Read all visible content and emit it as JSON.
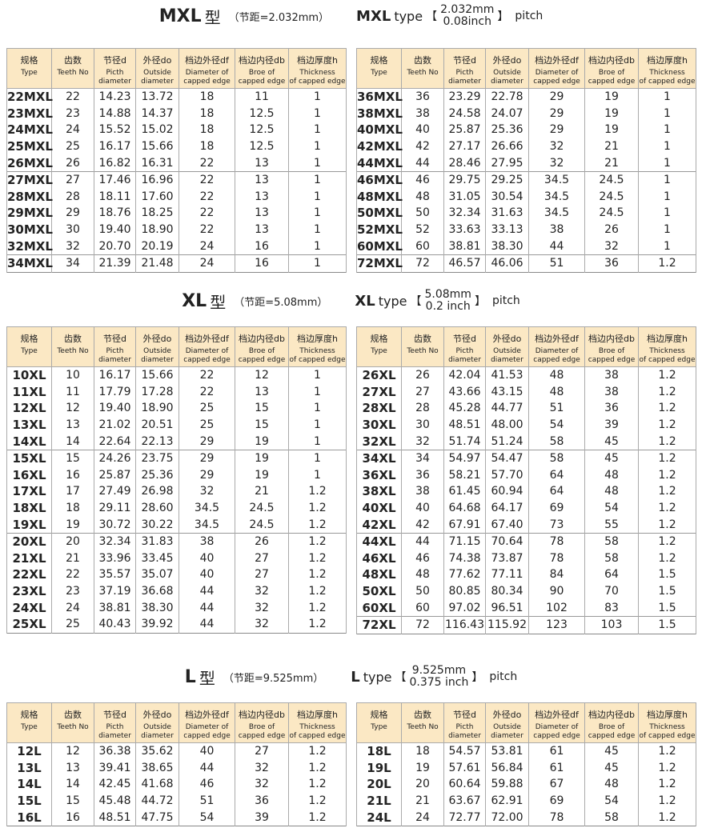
{
  "columns": [
    {
      "cn": "规格",
      "en": [
        "Type"
      ]
    },
    {
      "cn": "齿数",
      "en": [
        "Teeth No"
      ]
    },
    {
      "cn": "节径d",
      "en": [
        "Picth",
        "diameter"
      ]
    },
    {
      "cn": "外径do",
      "en": [
        "Outside",
        "diameter"
      ]
    },
    {
      "cn": "档边外径df",
      "en": [
        "Diameter of",
        "capped edge"
      ]
    },
    {
      "cn": "档边内径db",
      "en": [
        "Broe of",
        "capped edge"
      ]
    },
    {
      "cn": "档边厚度h",
      "en": [
        "Thickness",
        "of capped edge"
      ]
    }
  ],
  "sections": [
    {
      "heading": {
        "code": "MXL",
        "cn_type": "型",
        "cn_pitch": "（节距=2.032mm）",
        "en_type": "type",
        "bracket_open": "【",
        "pitch_mm": "2.032mm",
        "pitch_inch": "0.08inch",
        "bracket_close": "】",
        "pitch_word": "pitch"
      },
      "tables": [
        {
          "groups": [
            [
              [
                "22MXL",
                "22",
                "14.23",
                "13.72",
                "18",
                "11",
                "1"
              ],
              [
                "23MXL",
                "23",
                "14.88",
                "14.37",
                "18",
                "12.5",
                "1"
              ],
              [
                "24MXL",
                "24",
                "15.52",
                "15.02",
                "18",
                "12.5",
                "1"
              ],
              [
                "25MXL",
                "25",
                "16.17",
                "15.66",
                "18",
                "12.5",
                "1"
              ],
              [
                "26MXL",
                "26",
                "16.82",
                "16.31",
                "22",
                "13",
                "1"
              ]
            ],
            [
              [
                "27MXL",
                "27",
                "17.46",
                "16.96",
                "22",
                "13",
                "1"
              ],
              [
                "28MXL",
                "28",
                "18.11",
                "17.60",
                "22",
                "13",
                "1"
              ],
              [
                "29MXL",
                "29",
                "18.76",
                "18.25",
                "22",
                "13",
                "1"
              ],
              [
                "30MXL",
                "30",
                "19.40",
                "18.90",
                "22",
                "13",
                "1"
              ],
              [
                "32MXL",
                "32",
                "20.70",
                "20.19",
                "24",
                "16",
                "1"
              ]
            ],
            [
              [
                "34MXL",
                "34",
                "21.39",
                "21.48",
                "24",
                "16",
                "1"
              ]
            ]
          ]
        },
        {
          "groups": [
            [
              [
                "36MXL",
                "36",
                "23.29",
                "22.78",
                "29",
                "19",
                "1"
              ],
              [
                "38MXL",
                "38",
                "24.58",
                "24.07",
                "29",
                "19",
                "1"
              ],
              [
                "40MXL",
                "40",
                "25.87",
                "25.36",
                "29",
                "19",
                "1"
              ],
              [
                "42MXL",
                "42",
                "27.17",
                "26.66",
                "32",
                "21",
                "1"
              ],
              [
                "44MXL",
                "44",
                "28.46",
                "27.95",
                "32",
                "21",
                "1"
              ]
            ],
            [
              [
                "46MXL",
                "46",
                "29.75",
                "29.25",
                "34.5",
                "24.5",
                "1"
              ],
              [
                "48MXL",
                "48",
                "31.05",
                "30.54",
                "34.5",
                "24.5",
                "1"
              ],
              [
                "50MXL",
                "50",
                "32.34",
                "31.63",
                "34.5",
                "24.5",
                "1"
              ],
              [
                "52MXL",
                "52",
                "33.63",
                "33.13",
                "38",
                "26",
                "1"
              ],
              [
                "60MXL",
                "60",
                "38.81",
                "38.30",
                "44",
                "32",
                "1"
              ]
            ],
            [
              [
                "72MXL",
                "72",
                "46.57",
                "46.06",
                "51",
                "36",
                "1.2"
              ]
            ]
          ]
        }
      ]
    },
    {
      "heading": {
        "code": "XL",
        "cn_type": "型",
        "cn_pitch": "（节距=5.08mm）",
        "en_type": "type",
        "bracket_open": "【",
        "pitch_mm": "5.08mm",
        "pitch_inch": "0.2 inch",
        "bracket_close": "】",
        "pitch_word": "pitch"
      },
      "tables": [
        {
          "groups": [
            [
              [
                "10XL",
                "10",
                "16.17",
                "15.66",
                "22",
                "12",
                "1"
              ],
              [
                "11XL",
                "11",
                "17.79",
                "17.28",
                "22",
                "13",
                "1"
              ],
              [
                "12XL",
                "12",
                "19.40",
                "18.90",
                "25",
                "15",
                "1"
              ],
              [
                "13XL",
                "13",
                "21.02",
                "20.51",
                "25",
                "15",
                "1"
              ],
              [
                "14XL",
                "14",
                "22.64",
                "22.13",
                "29",
                "19",
                "1"
              ]
            ],
            [
              [
                "15XL",
                "15",
                "24.26",
                "23.75",
                "29",
                "19",
                "1"
              ],
              [
                "16XL",
                "16",
                "25.87",
                "25.36",
                "29",
                "19",
                "1"
              ],
              [
                "17XL",
                "17",
                "27.49",
                "26.98",
                "32",
                "21",
                "1.2"
              ],
              [
                "18XL",
                "18",
                "29.11",
                "28.60",
                "34.5",
                "24.5",
                "1.2"
              ],
              [
                "19XL",
                "19",
                "30.72",
                "30.22",
                "34.5",
                "24.5",
                "1.2"
              ]
            ],
            [
              [
                "20XL",
                "20",
                "32.34",
                "31.83",
                "38",
                "26",
                "1.2"
              ],
              [
                "21XL",
                "21",
                "33.96",
                "33.45",
                "40",
                "27",
                "1.2"
              ],
              [
                "22XL",
                "22",
                "35.57",
                "35.07",
                "40",
                "27",
                "1.2"
              ],
              [
                "23XL",
                "23",
                "37.19",
                "36.68",
                "44",
                "32",
                "1.2"
              ],
              [
                "24XL",
                "24",
                "38.81",
                "38.30",
                "44",
                "32",
                "1.2"
              ],
              [
                "25XL",
                "25",
                "40.43",
                "39.92",
                "44",
                "32",
                "1.2"
              ]
            ]
          ]
        },
        {
          "groups": [
            [
              [
                "26XL",
                "26",
                "42.04",
                "41.53",
                "48",
                "38",
                "1.2"
              ],
              [
                "27XL",
                "27",
                "43.66",
                "43.15",
                "48",
                "38",
                "1.2"
              ],
              [
                "28XL",
                "28",
                "45.28",
                "44.77",
                "51",
                "36",
                "1.2"
              ],
              [
                "30XL",
                "30",
                "48.51",
                "48.00",
                "54",
                "39",
                "1.2"
              ],
              [
                "32XL",
                "32",
                "51.74",
                "51.24",
                "58",
                "45",
                "1.2"
              ]
            ],
            [
              [
                "34XL",
                "34",
                "54.97",
                "54.47",
                "58",
                "45",
                "1.2"
              ],
              [
                "36XL",
                "36",
                "58.21",
                "57.70",
                "64",
                "48",
                "1.2"
              ],
              [
                "38XL",
                "38",
                "61.45",
                "60.94",
                "64",
                "48",
                "1.2"
              ],
              [
                "40XL",
                "40",
                "64.68",
                "64.17",
                "69",
                "54",
                "1.2"
              ],
              [
                "42XL",
                "42",
                "67.91",
                "67.40",
                "73",
                "55",
                "1.2"
              ]
            ],
            [
              [
                "44XL",
                "44",
                "71.15",
                "70.64",
                "78",
                "58",
                "1.2"
              ],
              [
                "46XL",
                "46",
                "74.38",
                "73.87",
                "78",
                "58",
                "1.2"
              ],
              [
                "48XL",
                "48",
                "77.62",
                "77.11",
                "84",
                "64",
                "1.5"
              ],
              [
                "50XL",
                "50",
                "80.85",
                "80.34",
                "90",
                "70",
                "1.5"
              ],
              [
                "60XL",
                "60",
                "97.02",
                "96.51",
                "102",
                "83",
                "1.5"
              ]
            ],
            [
              [
                "72XL",
                "72",
                "116.43",
                "115.92",
                "123",
                "103",
                "1.5"
              ]
            ]
          ]
        }
      ]
    },
    {
      "heading": {
        "code": "L",
        "cn_type": "型",
        "cn_pitch": "（节距=9.525mm）",
        "en_type": "type",
        "bracket_open": "【",
        "pitch_mm": "9.525mm",
        "pitch_inch": "0.375 inch",
        "bracket_close": "】",
        "pitch_word": "pitch"
      },
      "tables": [
        {
          "groups": [
            [
              [
                "12L",
                "12",
                "36.38",
                "35.62",
                "40",
                "27",
                "1.2"
              ],
              [
                "13L",
                "13",
                "39.41",
                "38.65",
                "44",
                "32",
                "1.2"
              ],
              [
                "14L",
                "14",
                "42.45",
                "41.68",
                "46",
                "32",
                "1.2"
              ],
              [
                "15L",
                "15",
                "45.48",
                "44.72",
                "51",
                "36",
                "1.2"
              ],
              [
                "16L",
                "16",
                "48.51",
                "47.75",
                "54",
                "39",
                "1.2"
              ]
            ]
          ]
        },
        {
          "groups": [
            [
              [
                "18L",
                "18",
                "54.57",
                "53.81",
                "61",
                "45",
                "1.2"
              ],
              [
                "19L",
                "19",
                "57.61",
                "56.84",
                "61",
                "45",
                "1.2"
              ],
              [
                "20L",
                "20",
                "60.64",
                "59.88",
                "67",
                "48",
                "1.2"
              ],
              [
                "21L",
                "21",
                "63.67",
                "62.91",
                "69",
                "54",
                "1.2"
              ],
              [
                "24L",
                "24",
                "72.77",
                "72.00",
                "78",
                "58",
                "1.2"
              ]
            ]
          ]
        }
      ]
    }
  ]
}
